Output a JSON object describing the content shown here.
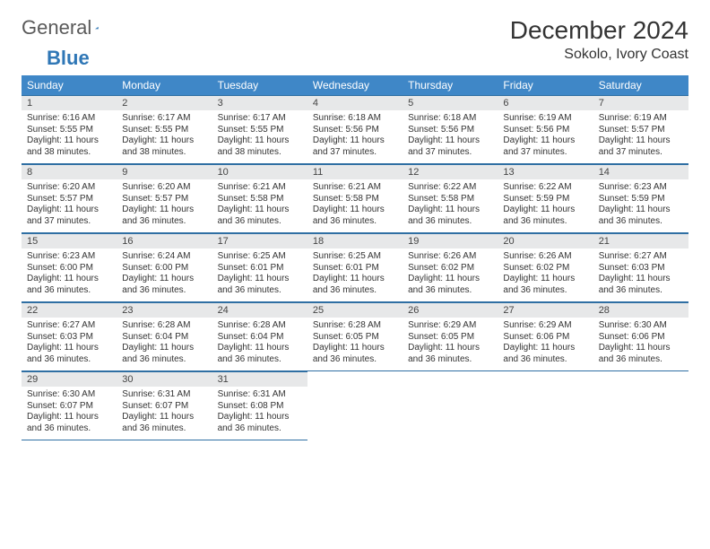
{
  "logo": {
    "text1": "General",
    "text2": "Blue"
  },
  "title": "December 2024",
  "location": "Sokolo, Ivory Coast",
  "colors": {
    "header_bg": "#3f87c7",
    "header_text": "#ffffff",
    "daynum_bg": "#e7e8e9",
    "rule": "#2f6fa3",
    "logo_blue": "#2f77b6",
    "logo_gray": "#5a5a5a",
    "body_text": "#333333"
  },
  "weekdays": [
    "Sunday",
    "Monday",
    "Tuesday",
    "Wednesday",
    "Thursday",
    "Friday",
    "Saturday"
  ],
  "weeks": [
    [
      {
        "n": "1",
        "sr": "6:16 AM",
        "ss": "5:55 PM",
        "dl": "11 hours and 38 minutes."
      },
      {
        "n": "2",
        "sr": "6:17 AM",
        "ss": "5:55 PM",
        "dl": "11 hours and 38 minutes."
      },
      {
        "n": "3",
        "sr": "6:17 AM",
        "ss": "5:55 PM",
        "dl": "11 hours and 38 minutes."
      },
      {
        "n": "4",
        "sr": "6:18 AM",
        "ss": "5:56 PM",
        "dl": "11 hours and 37 minutes."
      },
      {
        "n": "5",
        "sr": "6:18 AM",
        "ss": "5:56 PM",
        "dl": "11 hours and 37 minutes."
      },
      {
        "n": "6",
        "sr": "6:19 AM",
        "ss": "5:56 PM",
        "dl": "11 hours and 37 minutes."
      },
      {
        "n": "7",
        "sr": "6:19 AM",
        "ss": "5:57 PM",
        "dl": "11 hours and 37 minutes."
      }
    ],
    [
      {
        "n": "8",
        "sr": "6:20 AM",
        "ss": "5:57 PM",
        "dl": "11 hours and 37 minutes."
      },
      {
        "n": "9",
        "sr": "6:20 AM",
        "ss": "5:57 PM",
        "dl": "11 hours and 36 minutes."
      },
      {
        "n": "10",
        "sr": "6:21 AM",
        "ss": "5:58 PM",
        "dl": "11 hours and 36 minutes."
      },
      {
        "n": "11",
        "sr": "6:21 AM",
        "ss": "5:58 PM",
        "dl": "11 hours and 36 minutes."
      },
      {
        "n": "12",
        "sr": "6:22 AM",
        "ss": "5:58 PM",
        "dl": "11 hours and 36 minutes."
      },
      {
        "n": "13",
        "sr": "6:22 AM",
        "ss": "5:59 PM",
        "dl": "11 hours and 36 minutes."
      },
      {
        "n": "14",
        "sr": "6:23 AM",
        "ss": "5:59 PM",
        "dl": "11 hours and 36 minutes."
      }
    ],
    [
      {
        "n": "15",
        "sr": "6:23 AM",
        "ss": "6:00 PM",
        "dl": "11 hours and 36 minutes."
      },
      {
        "n": "16",
        "sr": "6:24 AM",
        "ss": "6:00 PM",
        "dl": "11 hours and 36 minutes."
      },
      {
        "n": "17",
        "sr": "6:25 AM",
        "ss": "6:01 PM",
        "dl": "11 hours and 36 minutes."
      },
      {
        "n": "18",
        "sr": "6:25 AM",
        "ss": "6:01 PM",
        "dl": "11 hours and 36 minutes."
      },
      {
        "n": "19",
        "sr": "6:26 AM",
        "ss": "6:02 PM",
        "dl": "11 hours and 36 minutes."
      },
      {
        "n": "20",
        "sr": "6:26 AM",
        "ss": "6:02 PM",
        "dl": "11 hours and 36 minutes."
      },
      {
        "n": "21",
        "sr": "6:27 AM",
        "ss": "6:03 PM",
        "dl": "11 hours and 36 minutes."
      }
    ],
    [
      {
        "n": "22",
        "sr": "6:27 AM",
        "ss": "6:03 PM",
        "dl": "11 hours and 36 minutes."
      },
      {
        "n": "23",
        "sr": "6:28 AM",
        "ss": "6:04 PM",
        "dl": "11 hours and 36 minutes."
      },
      {
        "n": "24",
        "sr": "6:28 AM",
        "ss": "6:04 PM",
        "dl": "11 hours and 36 minutes."
      },
      {
        "n": "25",
        "sr": "6:28 AM",
        "ss": "6:05 PM",
        "dl": "11 hours and 36 minutes."
      },
      {
        "n": "26",
        "sr": "6:29 AM",
        "ss": "6:05 PM",
        "dl": "11 hours and 36 minutes."
      },
      {
        "n": "27",
        "sr": "6:29 AM",
        "ss": "6:06 PM",
        "dl": "11 hours and 36 minutes."
      },
      {
        "n": "28",
        "sr": "6:30 AM",
        "ss": "6:06 PM",
        "dl": "11 hours and 36 minutes."
      }
    ],
    [
      {
        "n": "29",
        "sr": "6:30 AM",
        "ss": "6:07 PM",
        "dl": "11 hours and 36 minutes."
      },
      {
        "n": "30",
        "sr": "6:31 AM",
        "ss": "6:07 PM",
        "dl": "11 hours and 36 minutes."
      },
      {
        "n": "31",
        "sr": "6:31 AM",
        "ss": "6:08 PM",
        "dl": "11 hours and 36 minutes."
      },
      null,
      null,
      null,
      null
    ]
  ],
  "labels": {
    "sunrise": "Sunrise:",
    "sunset": "Sunset:",
    "daylight": "Daylight:"
  }
}
